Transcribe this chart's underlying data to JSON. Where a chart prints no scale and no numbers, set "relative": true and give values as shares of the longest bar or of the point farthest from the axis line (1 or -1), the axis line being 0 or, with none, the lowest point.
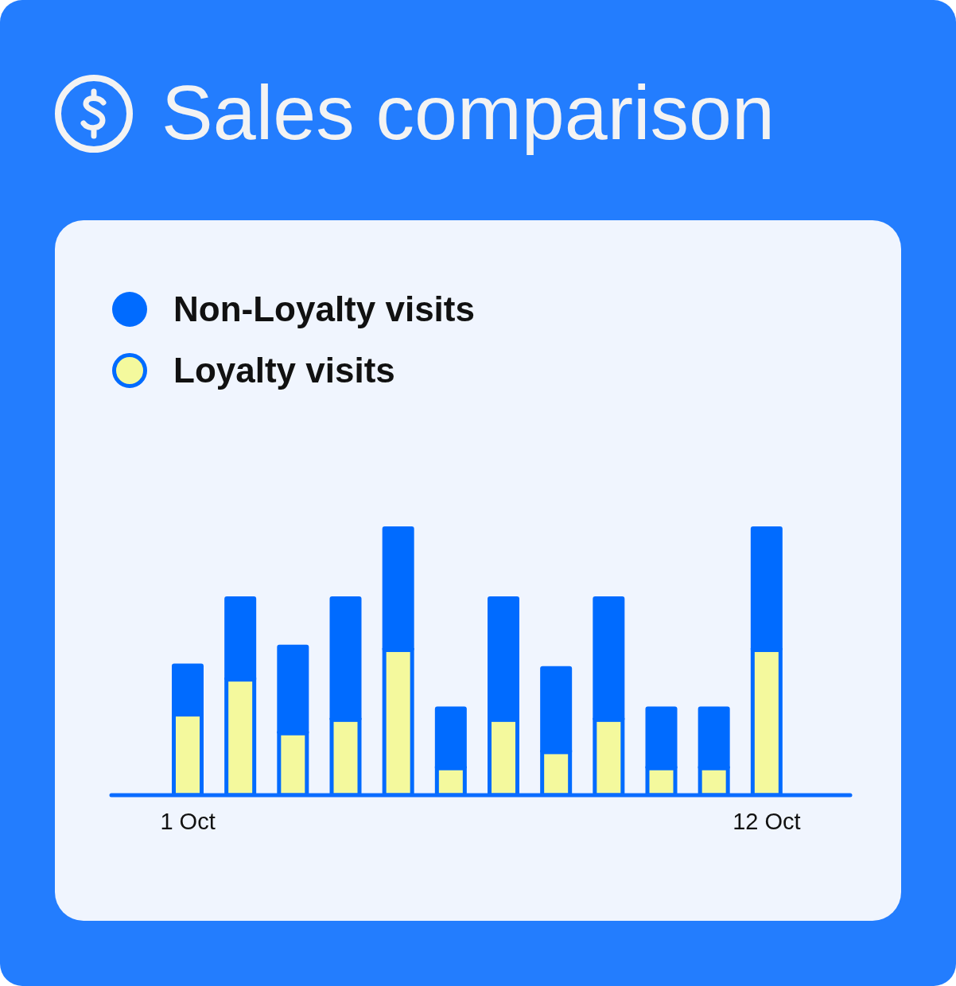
{
  "chart_data": {
    "type": "bar",
    "title": "Sales comparison",
    "stacked": true,
    "relative": true,
    "legend": "top left",
    "categories": [
      "1 Oct",
      null,
      null,
      null,
      null,
      null,
      null,
      null,
      null,
      null,
      null,
      "12 Oct"
    ],
    "series": [
      {
        "name": "Loyalty visits",
        "color": "#f4f99d",
        "values": [
          0.3,
          0.43,
          0.23,
          0.28,
          0.54,
          0.1,
          0.28,
          0.16,
          0.28,
          0.1,
          0.1,
          0.54
        ]
      },
      {
        "name": "Non-Loyalty visits",
        "color": "#006bff",
        "values": [
          0.19,
          0.31,
          0.33,
          0.46,
          0.46,
          0.23,
          0.46,
          0.32,
          0.46,
          0.23,
          0.23,
          0.46
        ]
      }
    ]
  }
}
